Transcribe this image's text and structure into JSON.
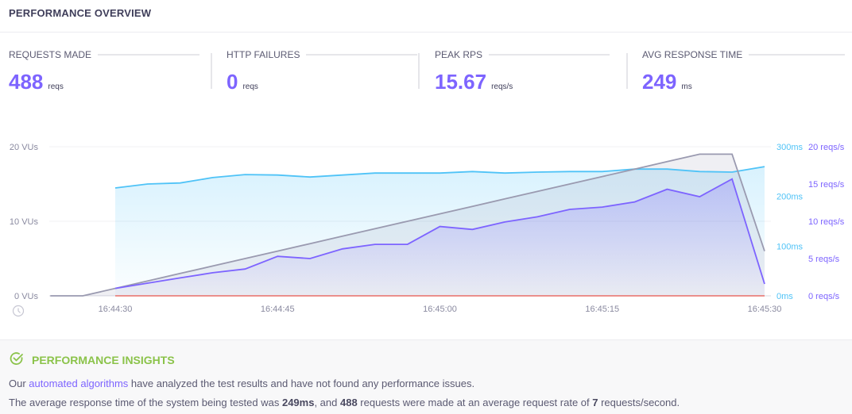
{
  "header": {
    "title": "PERFORMANCE OVERVIEW"
  },
  "stats": [
    {
      "label": "REQUESTS MADE",
      "value": "488",
      "unit": "reqs"
    },
    {
      "label": "HTTP FAILURES",
      "value": "0",
      "unit": "reqs"
    },
    {
      "label": "PEAK RPS",
      "value": "15.67",
      "unit": "reqs/s"
    },
    {
      "label": "AVG RESPONSE TIME",
      "value": "249",
      "unit": "ms"
    }
  ],
  "chart_data": {
    "type": "line",
    "x_ticks": [
      "16:44:30",
      "16:44:45",
      "16:45:00",
      "16:45:15",
      "16:45:30"
    ],
    "y_left": {
      "ticks": [
        "0 VUs",
        "10 VUs",
        "20 VUs"
      ],
      "range": [
        0,
        20
      ]
    },
    "y_right_ms": {
      "ticks": [
        "0ms",
        "100ms",
        "200ms",
        "300ms"
      ],
      "range": [
        0,
        300
      ]
    },
    "y_right_rps": {
      "ticks": [
        "0 reqs/s",
        "5 reqs/s",
        "10 reqs/s",
        "15 reqs/s",
        "20 reqs/s"
      ],
      "range": [
        0,
        20
      ]
    },
    "grid": true,
    "colors": {
      "vus": "#9a9ab0",
      "rps": "#7d64ff",
      "response_time": "#4fc3f7",
      "failures": "#e5534b"
    },
    "series": {
      "vus": {
        "x": [
          "16:44:24",
          "16:44:27",
          "16:44:30",
          "16:44:33",
          "16:44:36",
          "16:44:39",
          "16:44:42",
          "16:44:45",
          "16:44:48",
          "16:44:51",
          "16:44:54",
          "16:44:57",
          "16:45:00",
          "16:45:03",
          "16:45:06",
          "16:45:09",
          "16:45:12",
          "16:45:15",
          "16:45:18",
          "16:45:21",
          "16:45:24",
          "16:45:27",
          "16:45:30"
        ],
        "values": [
          0,
          0,
          1,
          2,
          3,
          4,
          5,
          6,
          7,
          8,
          9,
          10,
          11,
          12,
          13,
          14,
          15,
          16,
          17,
          18,
          19,
          19,
          6
        ]
      },
      "rps": {
        "x": [
          "16:44:30",
          "16:44:33",
          "16:44:36",
          "16:44:39",
          "16:44:42",
          "16:44:45",
          "16:44:48",
          "16:44:51",
          "16:44:54",
          "16:44:57",
          "16:45:00",
          "16:45:03",
          "16:45:06",
          "16:45:09",
          "16:45:12",
          "16:45:15",
          "16:45:18",
          "16:45:21",
          "16:45:24",
          "16:45:27",
          "16:45:30"
        ],
        "values": [
          1.0,
          1.7,
          2.4,
          3.1,
          3.6,
          5.3,
          5.0,
          6.3,
          6.9,
          6.9,
          9.3,
          8.9,
          9.9,
          10.6,
          11.6,
          11.9,
          12.6,
          14.3,
          13.3,
          15.67,
          1.6
        ]
      },
      "response_time": {
        "x": [
          "16:44:30",
          "16:44:33",
          "16:44:36",
          "16:44:39",
          "16:44:42",
          "16:44:45",
          "16:44:48",
          "16:44:51",
          "16:44:54",
          "16:44:57",
          "16:45:00",
          "16:45:03",
          "16:45:06",
          "16:45:09",
          "16:45:12",
          "16:45:15",
          "16:45:18",
          "16:45:21",
          "16:45:24",
          "16:45:27",
          "16:45:30"
        ],
        "values": [
          217,
          225,
          227,
          238,
          244,
          243,
          239,
          243,
          247,
          247,
          247,
          250,
          247,
          249,
          250,
          250,
          255,
          255,
          250,
          249,
          260
        ]
      },
      "failures": {
        "x": [
          "16:44:30",
          "16:45:30"
        ],
        "values": [
          0,
          0
        ]
      }
    }
  },
  "insights": {
    "title": "PERFORMANCE INSIGHTS",
    "line1_pre": "Our ",
    "line1_link": "automated algorithms",
    "line1_post": " have analyzed the test results and have not found any performance issues.",
    "line2_a": "The average response time of the system being tested was ",
    "line2_b": "249ms",
    "line2_c": ", and ",
    "line2_d": "488",
    "line2_e": " requests were made at an average request rate of ",
    "line2_f": "7",
    "line2_g": " requests/second."
  }
}
